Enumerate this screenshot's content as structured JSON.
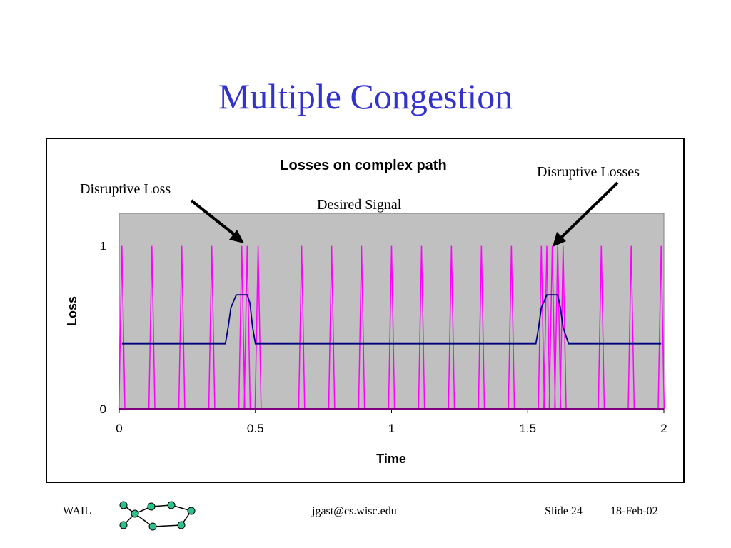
{
  "slide": {
    "title": "Multiple Congestion"
  },
  "footer": {
    "left": "WAIL",
    "center": "jgast@cs.wisc.edu",
    "slide": "Slide 24",
    "date": "18-Feb-02"
  },
  "chart_data": {
    "type": "line",
    "title": "Losses on complex path",
    "xlabel": "Time",
    "ylabel": "Loss",
    "xlim": [
      0,
      2
    ],
    "ylim": [
      0,
      1.2
    ],
    "x_ticks": [
      0,
      0.5,
      1,
      1.5,
      2
    ],
    "x_tick_labels": [
      "0",
      "0.5",
      "1",
      "1.5",
      "2"
    ],
    "y_ticks": [
      0,
      1
    ],
    "y_tick_labels": [
      "0",
      "1"
    ],
    "plot_background": "#c0c0c0",
    "grid": false,
    "annotations": [
      {
        "text": "Disruptive Loss",
        "arrow_to": [
          0.455,
          1.0
        ]
      },
      {
        "text": "Desired Signal"
      },
      {
        "text": "Disruptive Losses",
        "arrow_to": [
          1.58,
          1.0
        ]
      }
    ],
    "series": [
      {
        "color": "#ff00ff",
        "spike_times": [
          0.01,
          0.12,
          0.23,
          0.34,
          0.45,
          0.47,
          0.51,
          0.67,
          0.78,
          0.89,
          1.0,
          1.11,
          1.22,
          1.33,
          1.44,
          1.55,
          1.57,
          1.59,
          1.61,
          1.63,
          1.77,
          1.88,
          1.99
        ],
        "peak": 1.0,
        "baseline": 0.0
      },
      {
        "color": "#000080",
        "x": [
          0.01,
          0.39,
          0.4,
          0.41,
          0.43,
          0.47,
          0.48,
          0.49,
          0.5,
          1.53,
          1.54,
          1.55,
          1.57,
          1.61,
          1.62,
          1.63,
          1.65,
          1.99
        ],
        "values": [
          0.4,
          0.4,
          0.5,
          0.62,
          0.7,
          0.7,
          0.65,
          0.5,
          0.4,
          0.4,
          0.5,
          0.62,
          0.7,
          0.7,
          0.62,
          0.5,
          0.4,
          0.4
        ]
      }
    ]
  }
}
